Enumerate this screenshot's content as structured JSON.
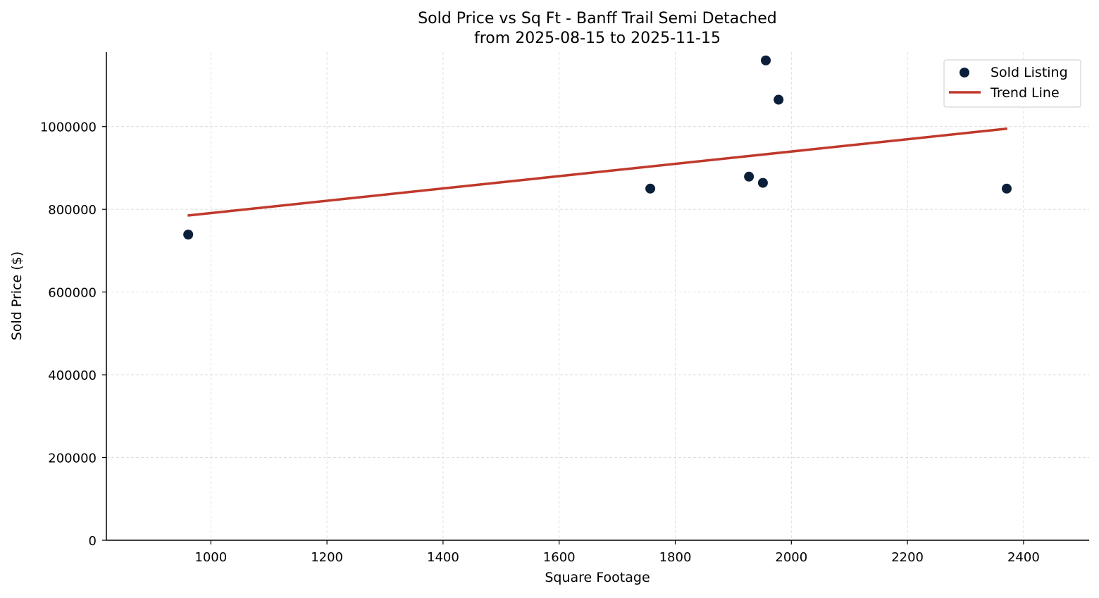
{
  "chart_data": {
    "type": "scatter",
    "title": "Sold Price vs Sq Ft - Banff Trail Semi Detached",
    "subtitle": "from 2025-08-15 to 2025-11-15",
    "xlabel": "Square Footage",
    "ylabel": "Sold Price ($)",
    "xlim": [
      820,
      2513
    ],
    "ylim": [
      0,
      1180000
    ],
    "xticks": [
      1000,
      1200,
      1400,
      1600,
      1800,
      2000,
      2200,
      2400
    ],
    "yticks": [
      0,
      200000,
      400000,
      600000,
      800000,
      1000000
    ],
    "grid": true,
    "legend_position": "top-right",
    "series": [
      {
        "name": "Sold Listing",
        "kind": "scatter",
        "color": "#0b1f3a",
        "x": [
          961,
          1757,
          1927,
          1951,
          1956,
          1978,
          2371
        ],
        "y": [
          739000,
          850000,
          879000,
          864000,
          1160000,
          1065000,
          850000
        ]
      },
      {
        "name": "Trend Line",
        "kind": "line",
        "color": "#c0392b",
        "x": [
          960,
          2372
        ],
        "y": [
          785000,
          995000
        ]
      }
    ]
  }
}
